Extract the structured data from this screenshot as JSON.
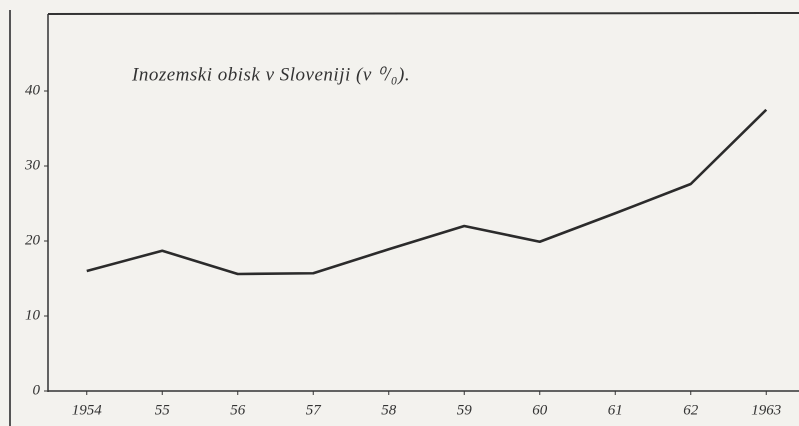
{
  "chart_data": {
    "type": "line",
    "title": "Inozemski obisk v Sloveniji (v ⁰/₀).",
    "categories": [
      "1954",
      "55",
      "56",
      "57",
      "58",
      "59",
      "60",
      "61",
      "62",
      "1963"
    ],
    "values": [
      16,
      18.7,
      15.6,
      15.7,
      18.9,
      22,
      19.9,
      23.7,
      27.6,
      37.5
    ],
    "color": "#2b2b2b",
    "ylim": [
      0,
      50
    ],
    "yticks": [
      0,
      10,
      20,
      30,
      40
    ],
    "grid": false
  }
}
